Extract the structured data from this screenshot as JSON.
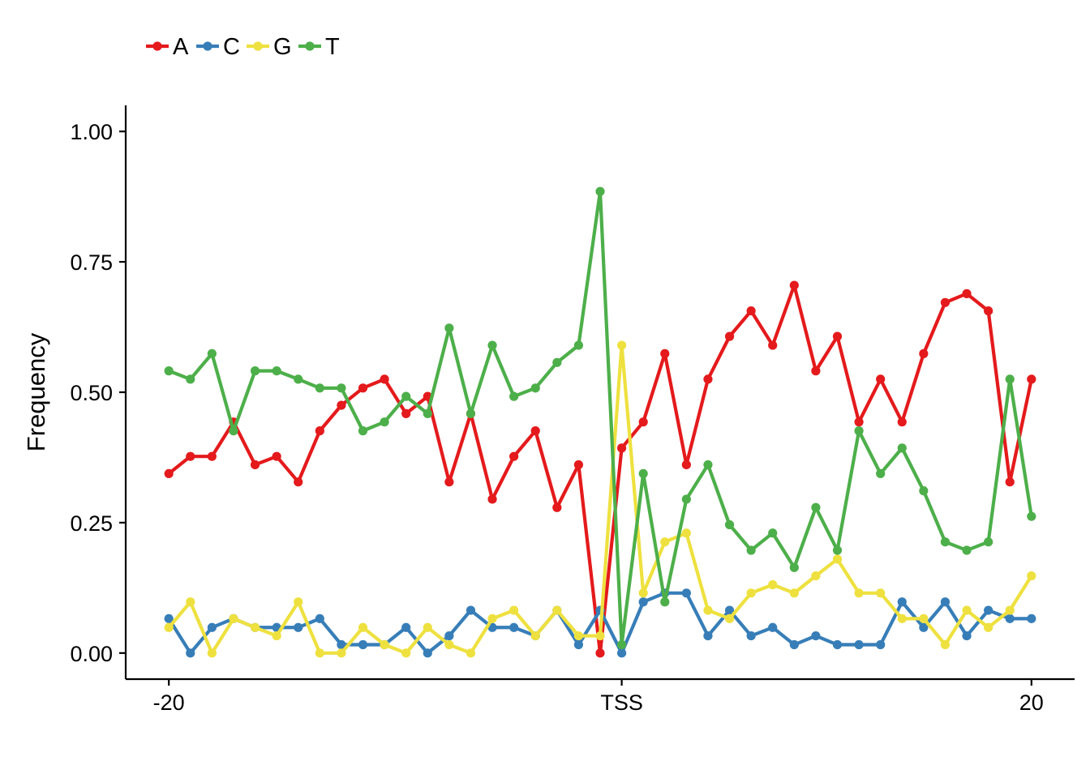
{
  "chart_data": {
    "type": "line",
    "title": "",
    "xlabel": "",
    "ylabel": "Frequency",
    "x": [
      -20,
      -19,
      -18,
      -17,
      -16,
      -15,
      -14,
      -13,
      -12,
      -11,
      -10,
      -9,
      -8,
      -7,
      -6,
      -5,
      -4,
      -3,
      -2,
      -1,
      0,
      1,
      2,
      3,
      4,
      5,
      6,
      7,
      8,
      9,
      10,
      11,
      12,
      13,
      14,
      15,
      16,
      17,
      18,
      19,
      20
    ],
    "x_ticks": [
      {
        "x": -20,
        "label": "-20"
      },
      {
        "x": 1,
        "label": "TSS"
      },
      {
        "x": 20,
        "label": "20"
      }
    ],
    "y_ticks": [
      {
        "y": 0.0,
        "label": "0.00"
      },
      {
        "y": 0.25,
        "label": "0.25"
      },
      {
        "y": 0.5,
        "label": "0.50"
      },
      {
        "y": 0.75,
        "label": "0.75"
      },
      {
        "y": 1.0,
        "label": "1.00"
      }
    ],
    "xlim": [
      -22,
      22
    ],
    "ylim": [
      -0.05,
      1.05
    ],
    "grid": false,
    "legend_position": "top-left",
    "series": [
      {
        "name": "A",
        "color": "#E41A1C",
        "values": [
          0.344,
          0.377,
          0.377,
          0.443,
          0.361,
          0.377,
          0.328,
          0.426,
          0.475,
          0.508,
          0.525,
          0.459,
          0.492,
          0.328,
          0.459,
          0.295,
          0.377,
          0.426,
          0.279,
          0.361,
          0.0,
          0.393,
          0.443,
          0.574,
          0.361,
          0.525,
          0.607,
          0.656,
          0.59,
          0.705,
          0.541,
          0.607,
          0.443,
          0.525,
          0.443,
          0.574,
          0.672,
          0.689,
          0.656,
          0.328,
          0.525
        ]
      },
      {
        "name": "C",
        "color": "#377EB8",
        "values": [
          0.066,
          0.0,
          0.049,
          0.066,
          0.049,
          0.049,
          0.049,
          0.066,
          0.016,
          0.016,
          0.016,
          0.049,
          0.0,
          0.033,
          0.082,
          0.049,
          0.049,
          0.033,
          0.082,
          0.016,
          0.082,
          0.0,
          0.098,
          0.115,
          0.115,
          0.033,
          0.082,
          0.033,
          0.049,
          0.016,
          0.033,
          0.016,
          0.016,
          0.016,
          0.098,
          0.049,
          0.098,
          0.033,
          0.082,
          0.066,
          0.066
        ]
      },
      {
        "name": "G",
        "color": "#EEE13F",
        "values": [
          0.049,
          0.098,
          0.0,
          0.066,
          0.049,
          0.033,
          0.098,
          0.0,
          0.0,
          0.049,
          0.016,
          0.0,
          0.049,
          0.016,
          0.0,
          0.066,
          0.082,
          0.033,
          0.082,
          0.033,
          0.033,
          0.59,
          0.115,
          0.213,
          0.23,
          0.082,
          0.066,
          0.115,
          0.131,
          0.115,
          0.148,
          0.18,
          0.115,
          0.115,
          0.066,
          0.066,
          0.016,
          0.082,
          0.049,
          0.082,
          0.148
        ]
      },
      {
        "name": "T",
        "color": "#4DAF4A",
        "values": [
          0.541,
          0.525,
          0.574,
          0.426,
          0.541,
          0.541,
          0.525,
          0.508,
          0.508,
          0.426,
          0.443,
          0.492,
          0.459,
          0.623,
          0.459,
          0.59,
          0.492,
          0.508,
          0.557,
          0.59,
          0.885,
          0.016,
          0.344,
          0.098,
          0.295,
          0.361,
          0.246,
          0.197,
          0.23,
          0.164,
          0.279,
          0.197,
          0.426,
          0.344,
          0.393,
          0.311,
          0.213,
          0.197,
          0.213,
          0.525,
          0.262
        ]
      }
    ]
  }
}
